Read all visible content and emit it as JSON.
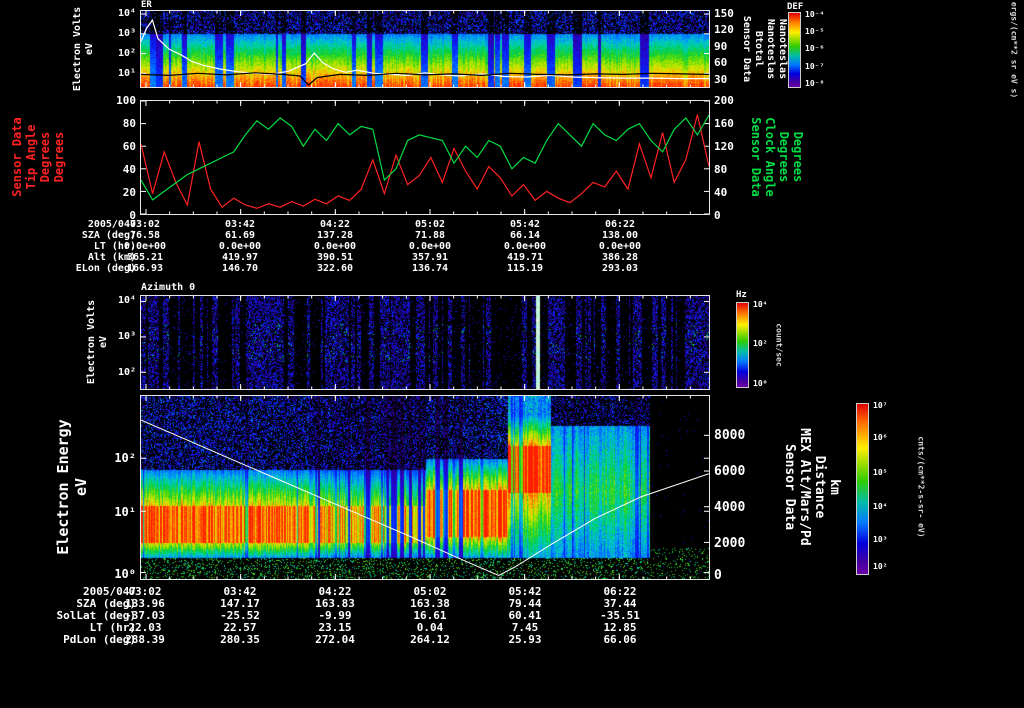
{
  "page": {
    "background": "#000000"
  },
  "annotations": {
    "block1": {
      "rows": [
        {
          "label": "2005/047",
          "values": [
            "03:02",
            "03:42",
            "04:22",
            "05:02",
            "05:42",
            "06:22"
          ]
        },
        {
          "label": "SZA (deg)",
          "values": [
            "76.58",
            "61.69",
            "137.28",
            "71.88",
            "66.14",
            "138.00"
          ]
        },
        {
          "label": "LT (hr)",
          "values": [
            "0.0e+00",
            "0.0e+00",
            "0.0e+00",
            "0.0e+00",
            "0.0e+00",
            "0.0e+00"
          ]
        },
        {
          "label": "Alt (km)",
          "values": [
            "365.21",
            "419.97",
            "390.51",
            "357.91",
            "419.71",
            "386.28"
          ]
        },
        {
          "label": "ELon (deg)",
          "values": [
            "166.93",
            "146.70",
            "322.60",
            "136.74",
            "115.19",
            "293.03"
          ]
        }
      ]
    },
    "block2": {
      "rows": [
        {
          "label": "2005/047",
          "values": [
            "03:02",
            "03:42",
            "04:22",
            "05:02",
            "05:42",
            "06:22"
          ]
        },
        {
          "label": "SZA (deg)",
          "values": [
            "133.96",
            "147.17",
            "163.83",
            "163.38",
            "79.44",
            "37.44"
          ]
        },
        {
          "label": "SolLat (deg)",
          "values": [
            "-37.03",
            "-25.52",
            "-9.99",
            "16.61",
            "60.41",
            "-35.51"
          ]
        },
        {
          "label": "LT (hr)",
          "values": [
            "22.03",
            "22.57",
            "23.15",
            "0.04",
            "7.45",
            "12.85"
          ]
        },
        {
          "label": "PdLon (deg)",
          "values": [
            "288.39",
            "280.35",
            "272.04",
            "264.12",
            "25.93",
            "66.06"
          ]
        }
      ]
    }
  },
  "chart_data": [
    {
      "type": "heatmap",
      "title": "ER",
      "y_axis": {
        "label_lines": [
          "Electron Volts",
          "eV"
        ],
        "ticks": [
          "10⁴",
          "10³",
          "10²",
          "10¹"
        ],
        "scale": "log"
      },
      "x_ticks": [
        "03:02",
        "03:42",
        "04:22",
        "05:02",
        "05:42",
        "06:22"
      ],
      "right_axis": {
        "label_lines": [
          "Sensor Data",
          "Btotal",
          "Nanoteslas",
          "Nanoteslas"
        ],
        "ticks": [
          "150",
          "120",
          "90",
          "60",
          "30"
        ],
        "range": [
          30,
          150
        ]
      },
      "colorbar": {
        "title": "DEF",
        "unit": "ergs/(cm**2 sr eV s)",
        "ticks": [
          "10⁻⁴",
          "10⁻⁵",
          "10⁻⁶",
          "10⁻⁷",
          "10⁻⁸"
        ]
      },
      "overlay_series": [
        {
          "name": "btotal_nt",
          "color": "#ffffff",
          "axis": "right",
          "x": [
            0,
            0.01,
            0.02,
            0.03,
            0.05,
            0.07,
            0.09,
            0.11,
            0.14,
            0.17,
            0.2,
            0.23,
            0.26,
            0.29,
            0.305,
            0.32,
            0.34,
            0.36,
            0.38,
            0.41,
            0.44,
            0.47,
            0.5,
            0.53,
            0.56,
            0.6,
            0.64,
            0.68,
            0.72,
            0.76,
            0.8,
            0.85,
            0.9,
            0.95,
            1
          ],
          "y": [
            100,
            125,
            140,
            105,
            85,
            75,
            62,
            55,
            48,
            43,
            40,
            38,
            44,
            58,
            78,
            60,
            48,
            42,
            46,
            40,
            38,
            36,
            41,
            37,
            35,
            39,
            34,
            33,
            36,
            33,
            32,
            31,
            31,
            30,
            30
          ]
        },
        {
          "name": "dark_trace_nt",
          "color": "#000000",
          "axis": "right",
          "x": [
            0,
            0.05,
            0.1,
            0.15,
            0.2,
            0.25,
            0.28,
            0.295,
            0.31,
            0.35,
            0.4,
            0.45,
            0.5,
            0.55,
            0.6,
            0.65,
            0.7,
            0.75,
            0.8,
            0.85,
            0.9,
            0.95,
            1
          ],
          "y": [
            38,
            36,
            40,
            37,
            41,
            38,
            35,
            18,
            32,
            38,
            36,
            40,
            37,
            39,
            36,
            40,
            38,
            37,
            39,
            38,
            40,
            39,
            38
          ]
        }
      ]
    },
    {
      "type": "line",
      "x_ticks": [
        "03:02",
        "03:42",
        "04:22",
        "05:02",
        "05:42",
        "06:22"
      ],
      "left_axis": {
        "label_lines": [
          "Sensor Data",
          "Tip Angle",
          "Degrees",
          "Degrees"
        ],
        "color": "#ff2222",
        "ticks": [
          "100",
          "80",
          "60",
          "40",
          "20",
          "0"
        ],
        "range": [
          0,
          100
        ]
      },
      "right_axis": {
        "label_lines": [
          "Sensor Data",
          "Clock Angle",
          "Degrees",
          "Degrees"
        ],
        "color": "#00dd44",
        "ticks": [
          "200",
          "160",
          "120",
          "80",
          "40",
          "0"
        ],
        "range": [
          0,
          200
        ]
      },
      "series": [
        {
          "name": "tip_angle_deg",
          "color": "#ff2222",
          "axis": "left",
          "y": [
            62,
            18,
            55,
            28,
            8,
            64,
            22,
            6,
            14,
            8,
            5,
            9,
            6,
            11,
            7,
            13,
            9,
            16,
            12,
            22,
            48,
            18,
            52,
            26,
            34,
            50,
            28,
            58,
            38,
            22,
            42,
            32,
            16,
            26,
            12,
            20,
            14,
            10,
            18,
            28,
            24,
            38,
            22,
            62,
            32,
            72,
            28,
            48,
            88,
            42
          ]
        },
        {
          "name": "clock_angle_deg",
          "color": "#00dd44",
          "axis": "right",
          "y": [
            60,
            25,
            40,
            55,
            70,
            80,
            90,
            100,
            110,
            140,
            165,
            150,
            170,
            155,
            120,
            150,
            130,
            160,
            140,
            155,
            150,
            60,
            80,
            130,
            140,
            135,
            130,
            90,
            120,
            100,
            130,
            120,
            80,
            100,
            90,
            130,
            160,
            140,
            120,
            160,
            140,
            130,
            150,
            160,
            130,
            110,
            150,
            170,
            140,
            175
          ]
        }
      ]
    },
    {
      "type": "heatmap",
      "title": "Azimuth 0",
      "y_axis": {
        "label_lines": [
          "Electron Volts",
          "eV"
        ],
        "ticks": [
          "10⁴",
          "10³",
          "10²"
        ],
        "scale": "log"
      },
      "colorbar": {
        "title": "Hz",
        "unit": "count/sec",
        "ticks": [
          "10⁴",
          "10²",
          "10⁰"
        ]
      },
      "features": {
        "bright_stripe_frac": 0.695
      }
    },
    {
      "type": "heatmap",
      "y_axis": {
        "label_lines": [
          "Electron Energy",
          "eV"
        ],
        "ticks": [
          "10²",
          "10¹",
          "10⁰"
        ],
        "scale": "log"
      },
      "right_axis": {
        "label_lines": [
          "Sensor Data",
          "MEX Alt/Mars/Pd",
          "Distance",
          "km"
        ],
        "ticks": [
          "8000",
          "6000",
          "4000",
          "2000",
          "0"
        ],
        "range": [
          0,
          10250
        ]
      },
      "colorbar": {
        "unit": "cnts/(cm**2-s-sr- eV)",
        "ticks": [
          "10⁷",
          "10⁶",
          "10⁵",
          "10⁴",
          "10³",
          "10²"
        ]
      },
      "features": {
        "data_end": 0.895,
        "red_block": [
          0.56,
          0.72
        ],
        "blob": [
          0.72,
          0.805
        ]
      },
      "overlay_series": [
        {
          "name": "mex_altitude_km",
          "color": "#ffffff",
          "axis": "right",
          "x": [
            0,
            0.08,
            0.16,
            0.24,
            0.32,
            0.4,
            0.48,
            0.55,
            0.6,
            0.63,
            0.66,
            0.72,
            0.8,
            0.88,
            1
          ],
          "y": [
            8900,
            7800,
            6700,
            5600,
            4500,
            3400,
            2300,
            1300,
            600,
            200,
            700,
            1900,
            3400,
            4600,
            5900
          ]
        }
      ]
    }
  ]
}
